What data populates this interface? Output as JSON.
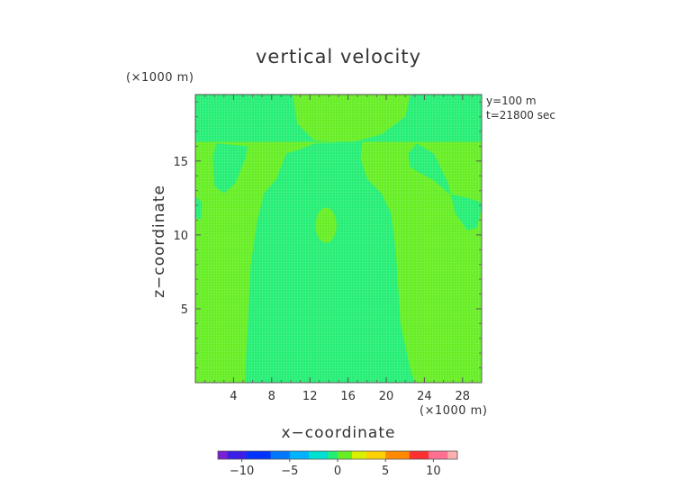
{
  "chart_data": {
    "type": "heatmap",
    "title": "vertical velocity",
    "xlabel": "x−coordinate",
    "ylabel": "z−coordinate",
    "x_unit": "(×1000 m)",
    "y_unit": "(×1000 m)",
    "annotations": [
      "y=100 m",
      "t=21800 sec"
    ],
    "xlim": [
      0,
      30
    ],
    "ylim": [
      0,
      19.5
    ],
    "x_ticks": [
      4,
      8,
      12,
      16,
      20,
      24,
      28
    ],
    "x_tick_labels": [
      "4",
      "8",
      "12",
      "16",
      "20",
      "24",
      "28"
    ],
    "y_ticks": [
      5,
      10,
      15
    ],
    "y_tick_labels": [
      "5",
      "10",
      "15"
    ],
    "colors": {
      "background_field": "#66ee22",
      "weak_downdraft": "#22ee77",
      "grid": "#b5f3a6"
    },
    "field_description": "Background value near +0.5 (yellow-green); regions near 0 (teal-green) form a central column and upper lobes.",
    "regions": [
      {
        "value": 0,
        "polygon": [
          [
            5.2,
            0
          ],
          [
            5.5,
            4
          ],
          [
            5.8,
            8
          ],
          [
            6.5,
            11
          ],
          [
            7.2,
            12.8
          ],
          [
            8.5,
            13.8
          ],
          [
            9.5,
            15.5
          ],
          [
            11,
            15.8
          ],
          [
            12.5,
            16.2
          ],
          [
            16,
            16.3
          ],
          [
            17.5,
            16.3
          ],
          [
            17.3,
            15.2
          ],
          [
            18,
            13.8
          ],
          [
            19.5,
            12.8
          ],
          [
            20.5,
            11.5
          ],
          [
            21,
            9
          ],
          [
            21.5,
            4
          ],
          [
            22.5,
            1
          ],
          [
            23,
            0
          ]
        ]
      },
      {
        "value": 0,
        "polygon": [
          [
            0,
            16.3
          ],
          [
            30,
            16.3
          ],
          [
            30,
            19.5
          ],
          [
            22.5,
            19.5
          ],
          [
            22,
            18
          ],
          [
            19.5,
            16.8
          ],
          [
            16,
            16.2
          ],
          [
            12.5,
            16.4
          ],
          [
            10.7,
            17.5
          ],
          [
            10.2,
            19.5
          ],
          [
            0,
            19.5
          ]
        ]
      },
      {
        "value": 0,
        "polygon": [
          [
            1.8,
            15.3
          ],
          [
            2.0,
            13.3
          ],
          [
            3.0,
            12.8
          ],
          [
            4.2,
            13.5
          ],
          [
            5.2,
            15.1
          ],
          [
            5.5,
            16.0
          ],
          [
            2.2,
            16.2
          ]
        ]
      },
      {
        "value": 0,
        "polygon": [
          [
            22.3,
            15.5
          ],
          [
            23.2,
            16.2
          ],
          [
            25,
            15.5
          ],
          [
            26.5,
            13.5
          ],
          [
            27.2,
            11.5
          ],
          [
            28.5,
            10.3
          ],
          [
            29.5,
            10.5
          ],
          [
            30,
            11.8
          ],
          [
            30,
            12.2
          ],
          [
            28.5,
            12.5
          ],
          [
            26.5,
            12.8
          ],
          [
            25,
            13.7
          ],
          [
            23.5,
            14.2
          ],
          [
            22.5,
            14.6
          ]
        ]
      },
      {
        "value": 0,
        "polygon": [
          [
            0,
            11.2
          ],
          [
            0.6,
            11.0
          ],
          [
            0.7,
            12.2
          ],
          [
            0,
            12.6
          ]
        ]
      },
      {
        "value": 0.6,
        "ellipse": {
          "cx": 13.7,
          "cy": 10.65,
          "rx": 1.1,
          "ry": 1.2
        }
      }
    ],
    "colorbar": {
      "range": [
        -12.5,
        12.5
      ],
      "tick_values": [
        -10,
        -5,
        0,
        5,
        10
      ],
      "tick_labels": [
        "−10",
        "−5",
        "0",
        "5",
        "10"
      ],
      "stops": [
        [
          -12.5,
          "#7a1fd1"
        ],
        [
          -11,
          "#3b1fe6"
        ],
        [
          -8.5,
          "#0033ff"
        ],
        [
          -6,
          "#0077ff"
        ],
        [
          -4,
          "#00b3ff"
        ],
        [
          -2,
          "#00e0d0"
        ],
        [
          -0.5,
          "#22ee77"
        ],
        [
          0.5,
          "#66ee22"
        ],
        [
          2,
          "#d8f000"
        ],
        [
          4,
          "#ffd000"
        ],
        [
          6,
          "#ff8a00"
        ],
        [
          8.5,
          "#ff3030"
        ],
        [
          10.5,
          "#ff6f91"
        ],
        [
          12.5,
          "#ffb0b0"
        ]
      ]
    }
  }
}
